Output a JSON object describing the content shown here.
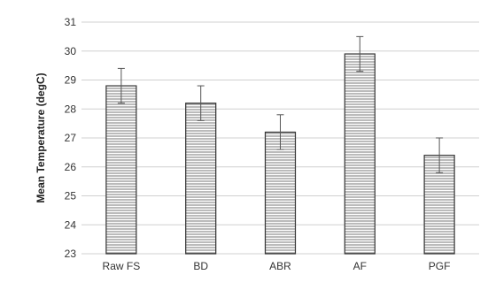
{
  "chart_data": {
    "type": "bar",
    "title": "",
    "xlabel": "",
    "ylabel": "Mean Temperature (degC)",
    "categories": [
      "Raw FS",
      "BD",
      "ABR",
      "AF",
      "PGF"
    ],
    "values": [
      28.8,
      28.2,
      27.2,
      29.9,
      26.4
    ],
    "error_bars": [
      0.6,
      0.6,
      0.6,
      0.6,
      0.6
    ],
    "ylim": [
      23,
      31
    ],
    "yticks": [
      "23",
      "24",
      "25",
      "26",
      "27",
      "28",
      "29",
      "30",
      "31"
    ],
    "grid": "horizontal",
    "legend": "none",
    "bar_pattern": "horizontal-lines",
    "colors": {
      "bar_stroke": "#333333",
      "bar_pattern_line": "#777777",
      "grid": "#d0d0d0",
      "error_bar": "#555555",
      "text": "#333333"
    }
  }
}
